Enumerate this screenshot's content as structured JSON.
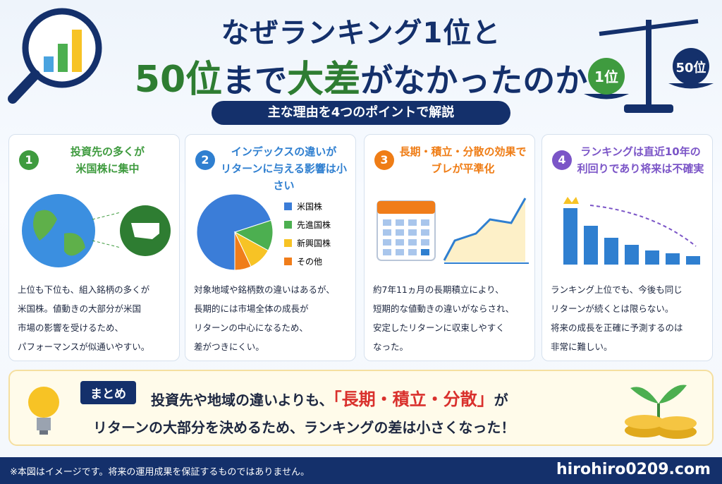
{
  "header": {
    "title_line1": "なぜランキング1位と",
    "title_line2": [
      "50位",
      "まで",
      "大差",
      "がなかったのか"
    ],
    "subtitle": "主な理由を4つのポイントで解説",
    "scale_labels": [
      "1位",
      "50位"
    ]
  },
  "cards": [
    {
      "number": "1",
      "heading": [
        "投資先の多くが",
        "米国株に集中"
      ],
      "body": [
        "上位も下位も、組入銘柄の多くが",
        "米国株。値動きの大部分が米国",
        "市場の影響を受けるため、",
        "パフォーマンスが似通いやすい。"
      ]
    },
    {
      "number": "2",
      "heading": [
        "インデックスの違いが",
        "リターンに与える影響は小さい"
      ],
      "body": [
        "対象地域や銘柄数の違いはあるが、",
        "長期的には市場全体の成長が",
        "リターンの中心になるため、",
        "差がつきにくい。"
      ]
    },
    {
      "number": "3",
      "heading": [
        "長期・積立・分散の効果で",
        "ブレが平準化"
      ],
      "body": [
        "約7年11ヵ月の長期積立により、",
        "短期的な値動きの違いがならされ、",
        "安定したリターンに収束しやすく",
        "なった。"
      ]
    },
    {
      "number": "4",
      "heading": [
        "ランキングは直近10年の",
        "利回りであり将来は不確実"
      ],
      "body": [
        "ランキング上位でも、今後も同じ",
        "リターンが続くとは限らない。",
        "将来の成長を正確に予測するのは",
        "非常に難しい。"
      ]
    }
  ],
  "pie": {
    "labels": [
      "米国株",
      "先進国株",
      "新興国株",
      "その他"
    ],
    "values": [
      70,
      13,
      10,
      7
    ],
    "colors": [
      "#3b7dd8",
      "#4caf50",
      "#f7c325",
      "#f07d1a"
    ]
  },
  "summary": {
    "label": "まとめ",
    "line1": [
      "投資先や地域の違いよりも、",
      "「長期・積立・分散」",
      "が"
    ],
    "line2": "リターンの大部分を決めるため、ランキングの差は小さくなった！"
  },
  "footer": {
    "note": "※本図はイメージです。将来の運用成果を保証するものではありません。",
    "site": "hirohiro0209.com"
  }
}
